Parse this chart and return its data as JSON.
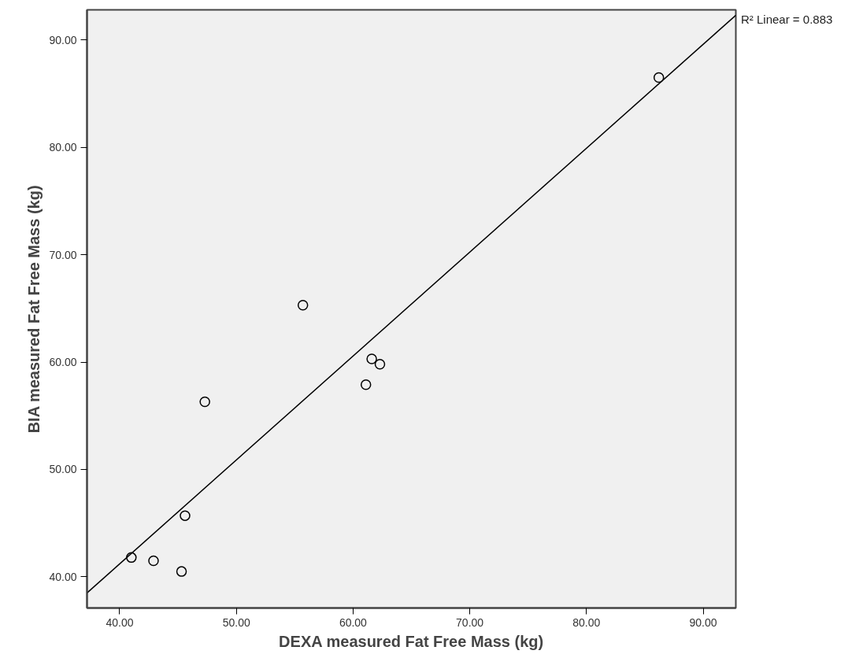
{
  "chart_data": {
    "type": "scatter",
    "xlabel": "DEXA measured Fat Free Mass (kg)",
    "ylabel": "BIA measured Fat Free Mass (kg)",
    "x": [
      86.2,
      55.7,
      61.6,
      62.3,
      61.1,
      47.3,
      45.6,
      41.0,
      42.9,
      45.3
    ],
    "series": [
      {
        "color": "#000000",
        "marker": "circle",
        "values": [
          86.5,
          65.3,
          60.3,
          59.8,
          57.9,
          56.3,
          45.7,
          41.8,
          41.5,
          40.5
        ]
      },
      {
        "type": "line",
        "color": "#000000",
        "x": [
          37.2,
          92.8
        ],
        "values": [
          38.5,
          92.3
        ]
      }
    ],
    "xlim": [
      37.2,
      92.8
    ],
    "ylim": [
      37.1,
      92.8
    ],
    "xticks": [
      {
        "value": 40,
        "label": "40.00"
      },
      {
        "value": 50,
        "label": "50.00"
      },
      {
        "value": 60,
        "label": "60.00"
      },
      {
        "value": 70,
        "label": "70.00"
      },
      {
        "value": 80,
        "label": "80.00"
      },
      {
        "value": 90,
        "label": "90.00"
      }
    ],
    "yticks": [
      {
        "value": 40,
        "label": "40.00"
      },
      {
        "value": 50,
        "label": "50.00"
      },
      {
        "value": 60,
        "label": "60.00"
      },
      {
        "value": 70,
        "label": "70.00"
      },
      {
        "value": 80,
        "label": "80.00"
      },
      {
        "value": 90,
        "label": "90.00"
      }
    ],
    "grid": false,
    "annotations": [
      "R² Linear = 0.883"
    ]
  }
}
